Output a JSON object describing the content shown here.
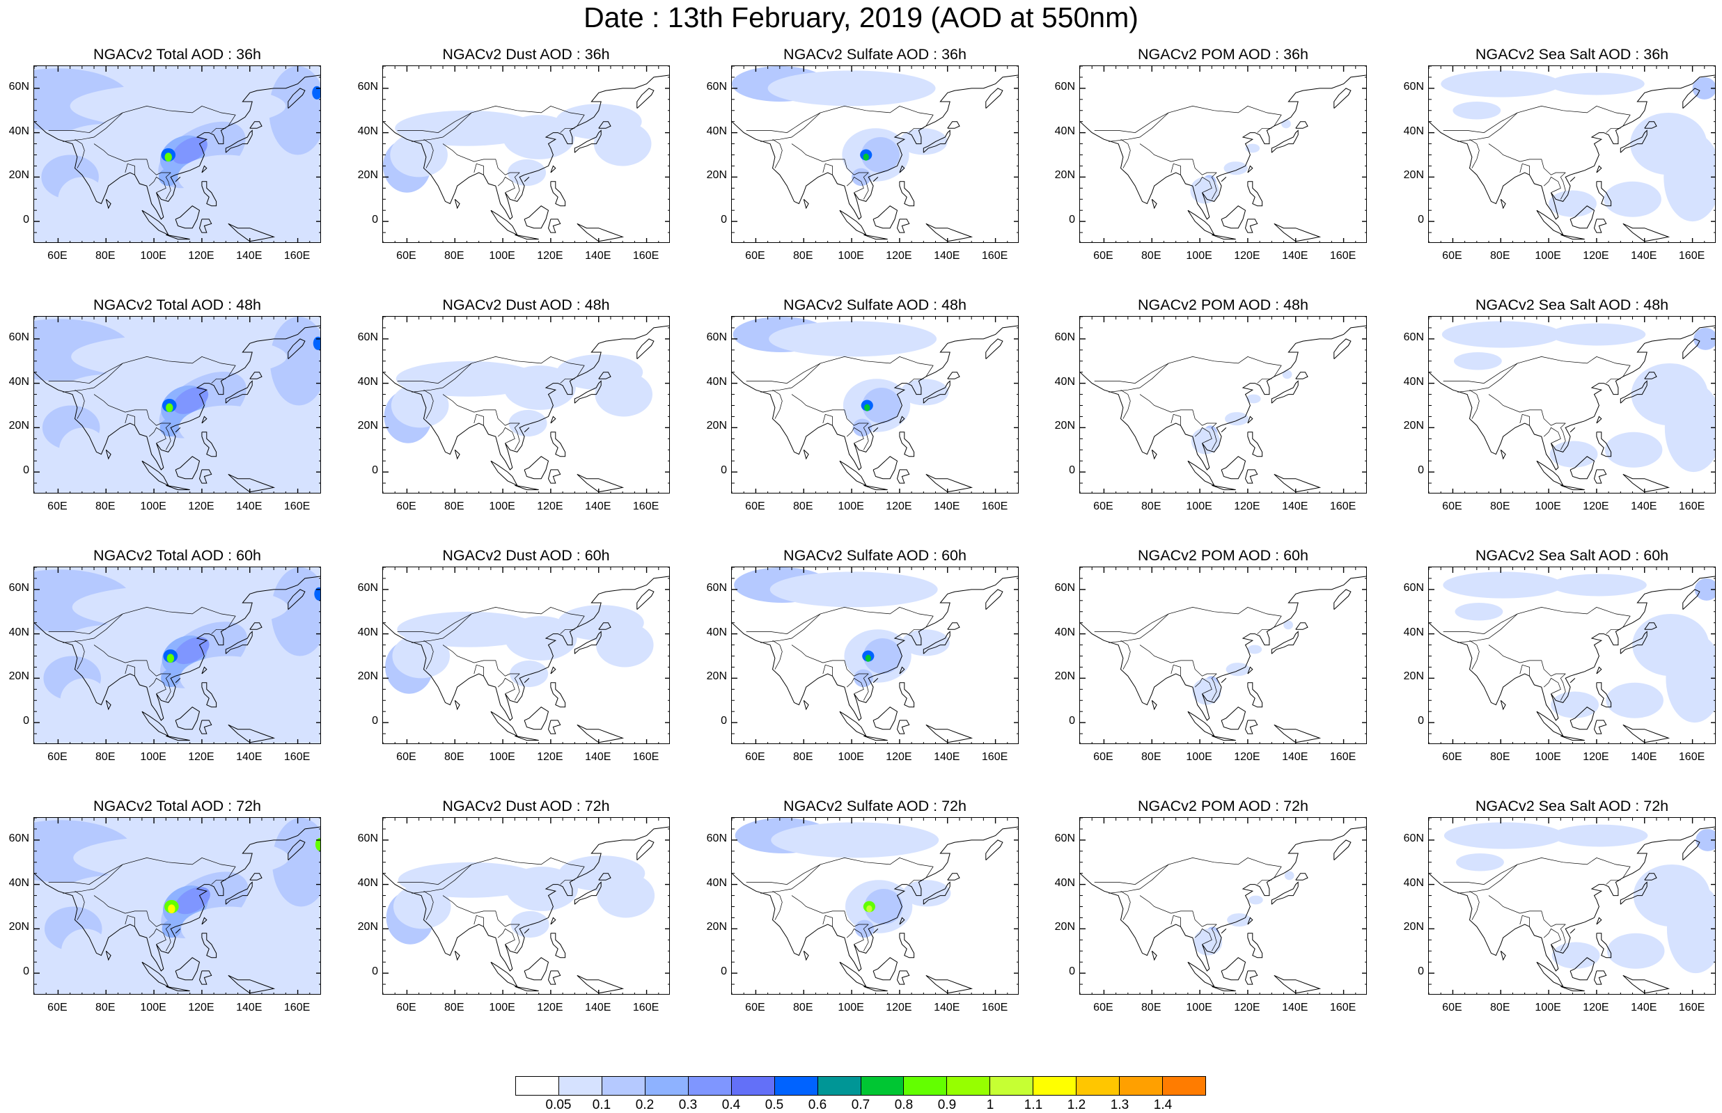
{
  "title": "Date : 13th February, 2019 (AOD at 550nm)",
  "lat_labels": [
    "60N",
    "40N",
    "20N",
    "0"
  ],
  "lat_values": [
    60,
    40,
    20,
    0
  ],
  "lon_labels": [
    "60E",
    "80E",
    "100E",
    "120E",
    "140E",
    "160E"
  ],
  "lon_values": [
    60,
    80,
    100,
    120,
    140,
    160
  ],
  "map_extent": {
    "lon_min": 50,
    "lon_max": 170,
    "lat_min": -10,
    "lat_max": 70
  },
  "panels": [
    {
      "title": "NGACv2 Total AOD : 36h",
      "species": "total"
    },
    {
      "title": "NGACv2 Dust AOD : 36h",
      "species": "dust"
    },
    {
      "title": "NGACv2 Sulfate AOD : 36h",
      "species": "sulfate"
    },
    {
      "title": "NGACv2 POM AOD : 36h",
      "species": "pom"
    },
    {
      "title": "NGACv2 Sea Salt AOD : 36h",
      "species": "seasalt"
    },
    {
      "title": "NGACv2 Total AOD : 48h",
      "species": "total"
    },
    {
      "title": "NGACv2 Dust AOD : 48h",
      "species": "dust"
    },
    {
      "title": "NGACv2 Sulfate AOD : 48h",
      "species": "sulfate"
    },
    {
      "title": "NGACv2 POM AOD : 48h",
      "species": "pom"
    },
    {
      "title": "NGACv2 Sea Salt AOD : 48h",
      "species": "seasalt"
    },
    {
      "title": "NGACv2 Total AOD : 60h",
      "species": "total"
    },
    {
      "title": "NGACv2 Dust AOD : 60h",
      "species": "dust"
    },
    {
      "title": "NGACv2 Sulfate AOD : 60h",
      "species": "sulfate"
    },
    {
      "title": "NGACv2 POM AOD : 60h",
      "species": "pom"
    },
    {
      "title": "NGACv2 Sea Salt AOD : 60h",
      "species": "seasalt"
    },
    {
      "title": "NGACv2 Total AOD : 72h",
      "species": "total"
    },
    {
      "title": "NGACv2 Dust AOD : 72h",
      "species": "dust"
    },
    {
      "title": "NGACv2 Sulfate AOD : 72h",
      "species": "sulfate"
    },
    {
      "title": "NGACv2 POM AOD : 72h",
      "species": "pom"
    },
    {
      "title": "NGACv2 Sea Salt  AOD : 72h",
      "species": "seasalt"
    }
  ],
  "colorbar": {
    "labels": [
      "0.05",
      "0.1",
      "0.2",
      "0.3",
      "0.4",
      "0.5",
      "0.6",
      "0.7",
      "0.8",
      "0.9",
      "1",
      "1.1",
      "1.2",
      "1.3",
      "1.4"
    ],
    "colors": [
      "#ffffff",
      "#d6e2ff",
      "#b5c9ff",
      "#8eb2ff",
      "#7f96ff",
      "#6370f8",
      "#0063ff",
      "#009696",
      "#00c633",
      "#63ff00",
      "#96ff00",
      "#c6ff33",
      "#ffff00",
      "#ffc600",
      "#ffa000",
      "#ff7c00",
      "#ff1900"
    ]
  }
}
